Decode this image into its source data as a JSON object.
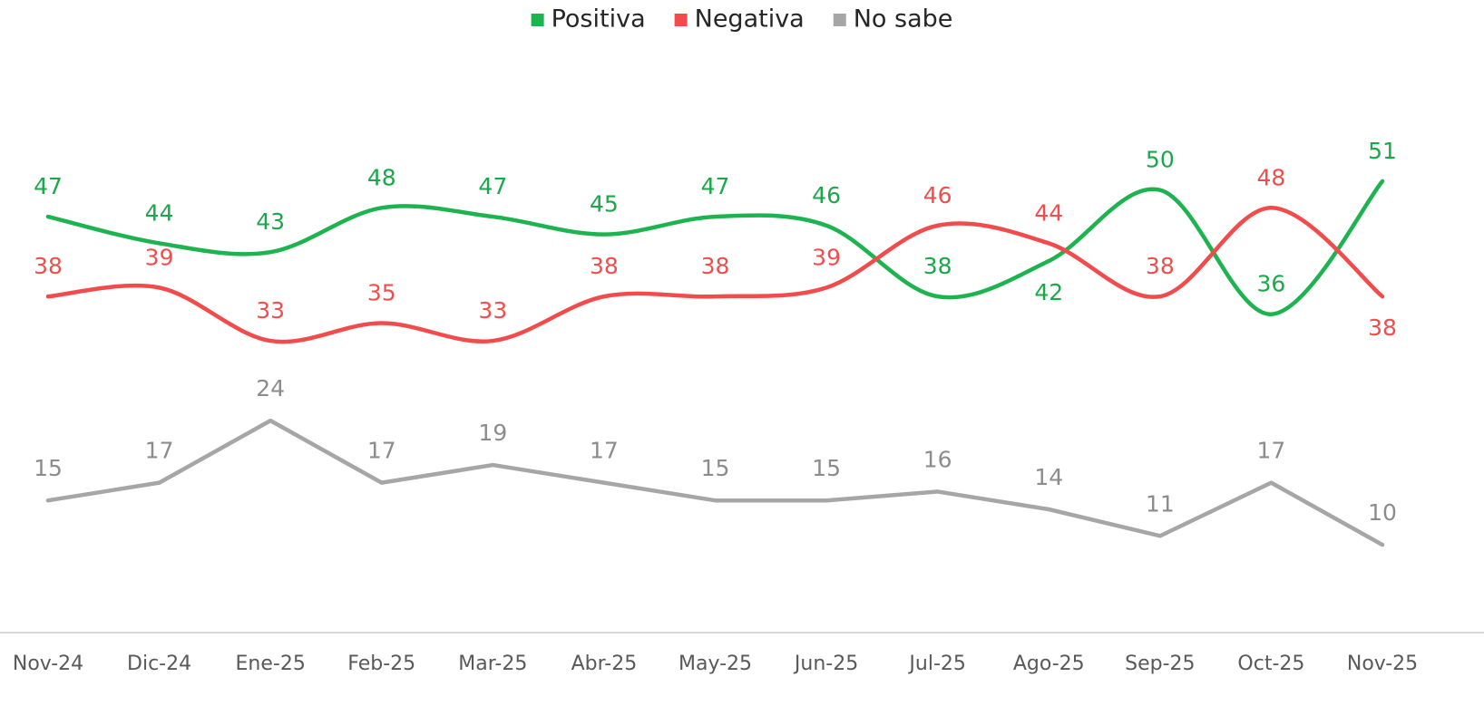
{
  "chart_data": {
    "type": "line",
    "categories": [
      "Nov-24",
      "Dic-24",
      "Ene-25",
      "Feb-25",
      "Mar-25",
      "Abr-25",
      "May-25",
      "Jun-25",
      "Jul-25",
      "Ago-25",
      "Sep-25",
      "Oct-25",
      "Nov-25"
    ],
    "series": [
      {
        "name": "Positiva",
        "color": "#1db34e",
        "smooth": true,
        "values": [
          47,
          44,
          43,
          48,
          47,
          45,
          47,
          46,
          38,
          42,
          50,
          36,
          51
        ]
      },
      {
        "name": "Negativa",
        "color": "#f24b4b",
        "smooth": true,
        "values": [
          38,
          39,
          33,
          35,
          33,
          38,
          38,
          39,
          46,
          44,
          38,
          48,
          38
        ]
      },
      {
        "name": "No sabe",
        "color": "#a6a6a6",
        "smooth": false,
        "values": [
          15,
          17,
          24,
          17,
          19,
          17,
          15,
          15,
          16,
          14,
          11,
          17,
          10
        ]
      }
    ],
    "ylim": [
      0,
      70
    ],
    "legend": "top"
  }
}
